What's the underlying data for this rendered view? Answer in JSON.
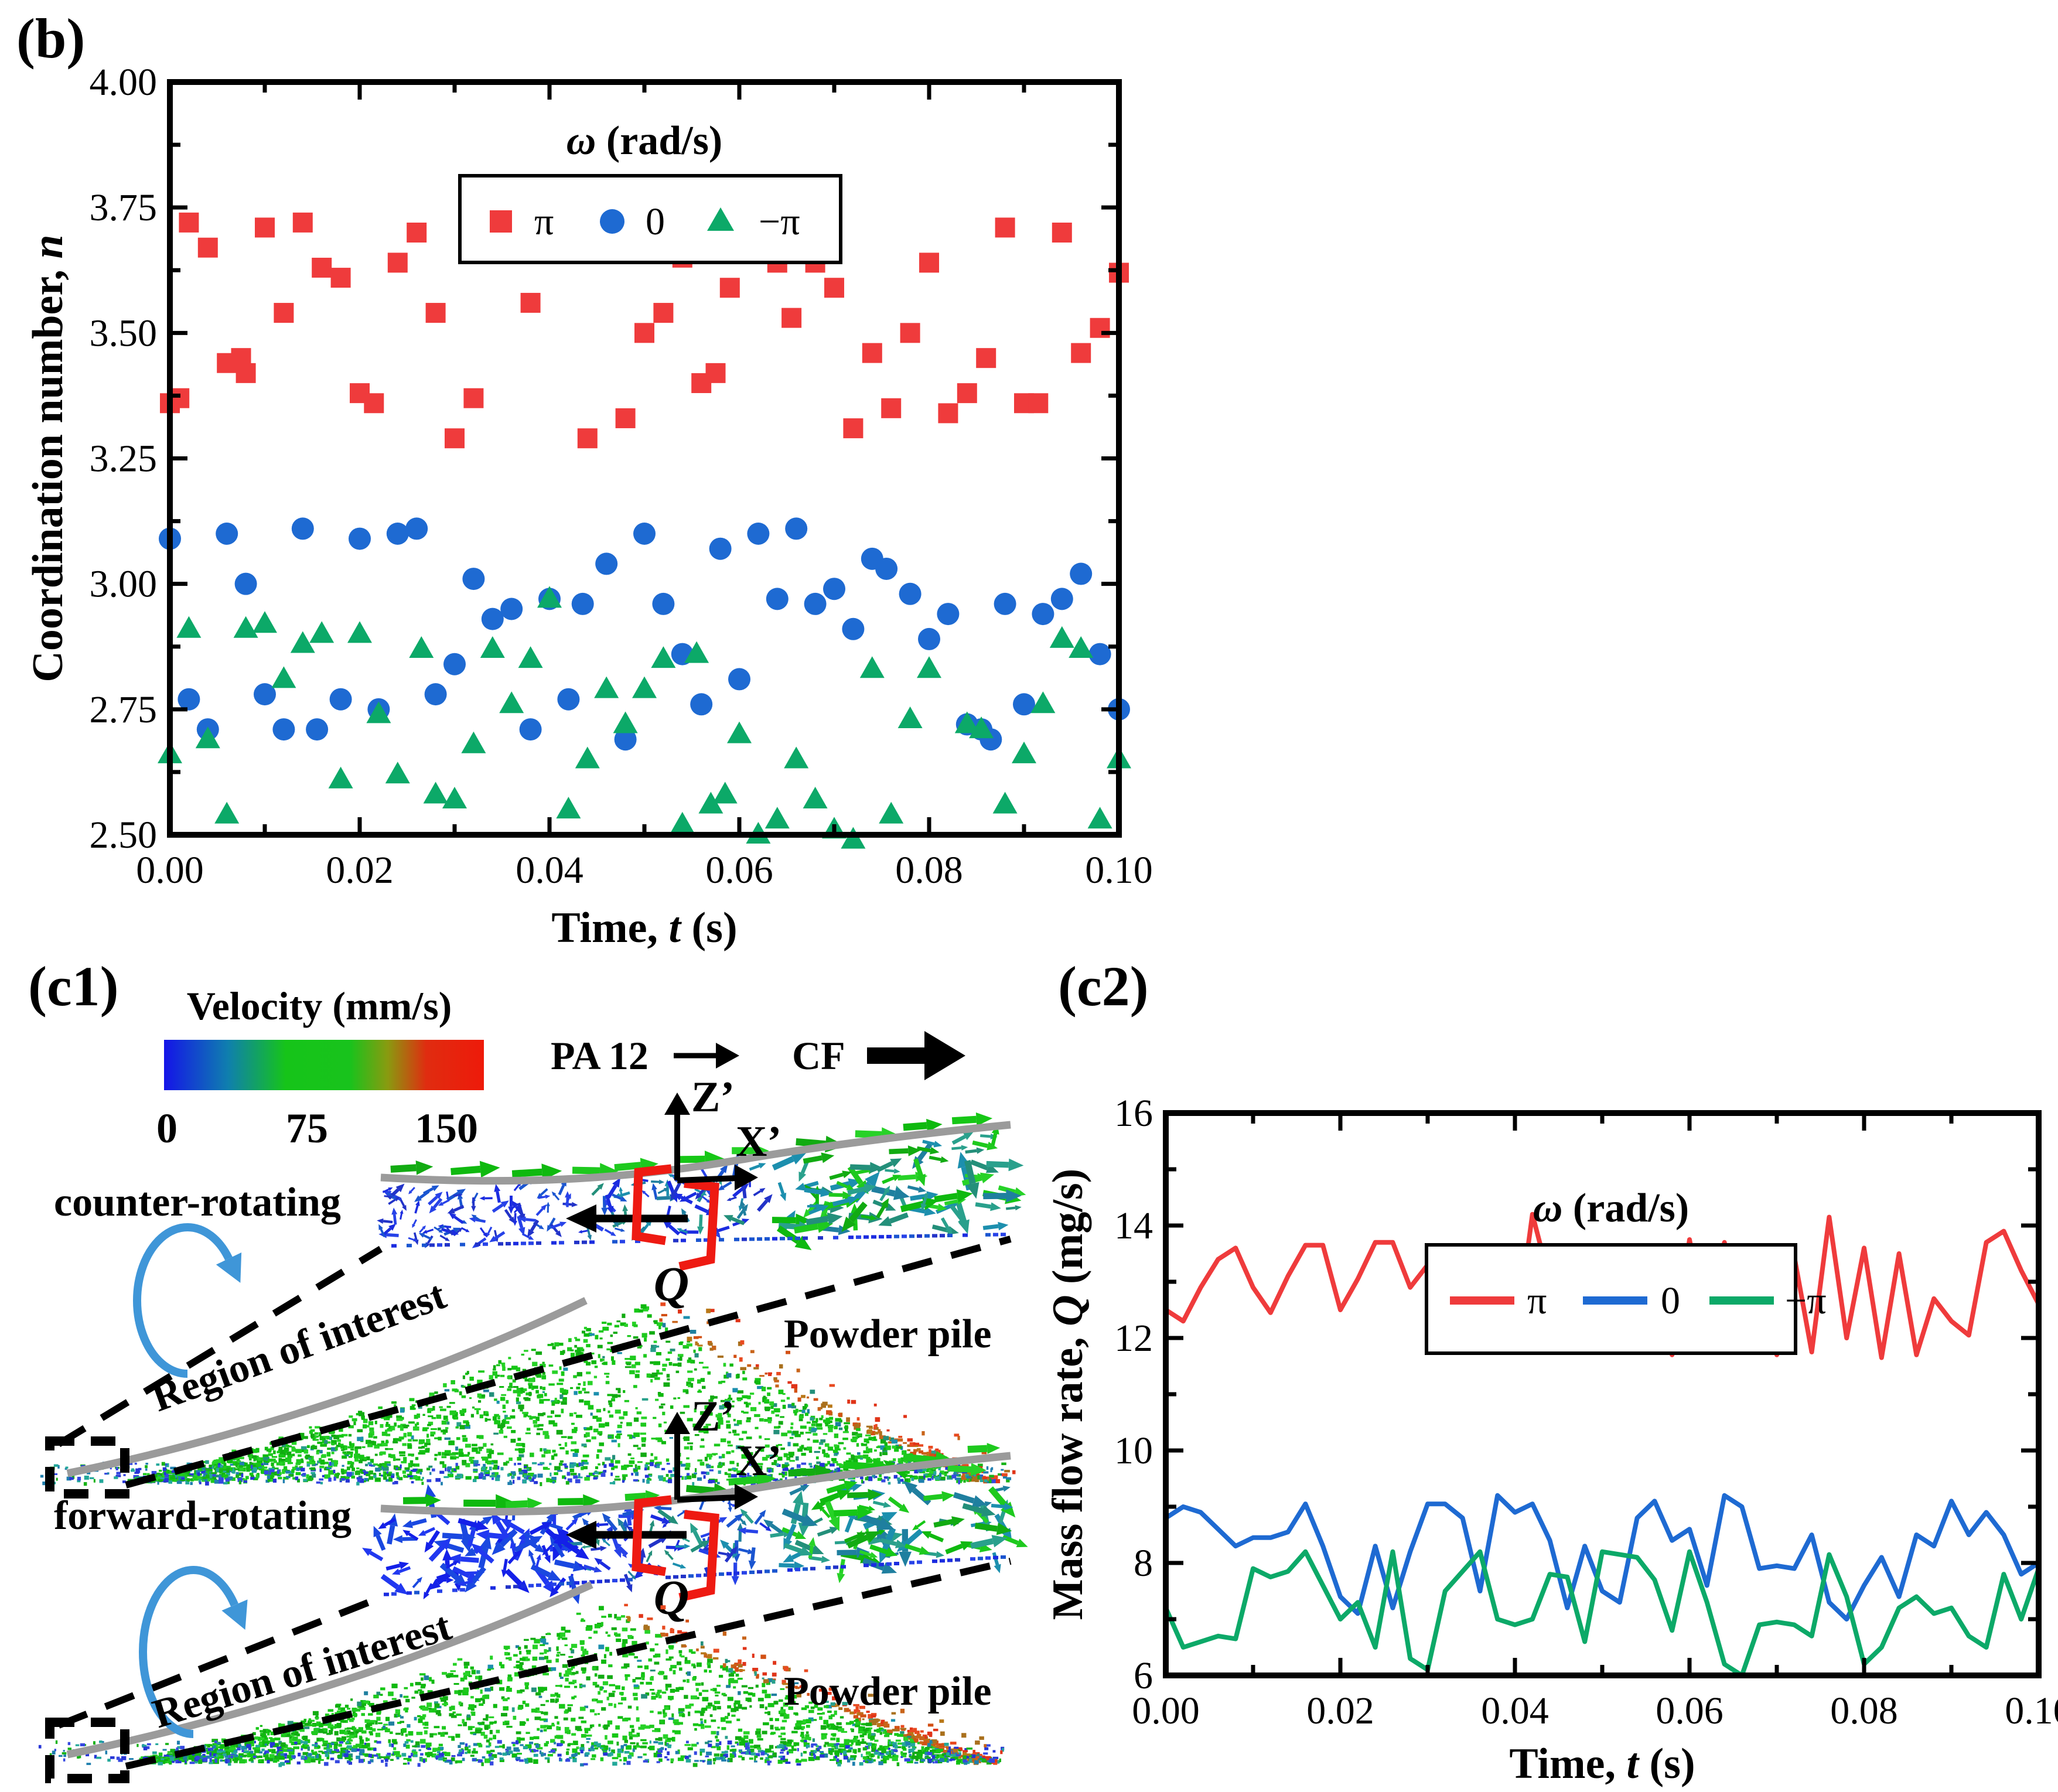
{
  "panels": {
    "b_label": "(b)",
    "c1_label": "(c1)",
    "c2_label": "(c2)"
  },
  "chart_data": [
    {
      "id": "b",
      "type": "scatter",
      "xlabel_parts": [
        [
          "Time, ",
          false
        ],
        [
          "t",
          true
        ],
        [
          " (s)",
          false
        ]
      ],
      "ylabel_parts": [
        [
          "Coordination number, ",
          false
        ],
        [
          "n",
          true
        ]
      ],
      "xlim": [
        0,
        0.1
      ],
      "ylim": [
        2.5,
        4.0
      ],
      "grid": false,
      "legend": {
        "position": "top-center",
        "title_parts": [
          [
            "ω",
            true
          ],
          [
            " (rad/s)",
            false
          ]
        ],
        "entries": [
          {
            "label": "π",
            "marker": "square",
            "color": "#ef3b3c"
          },
          {
            "label": "0",
            "marker": "circle",
            "color": "#1e6ad2"
          },
          {
            "label": "−π",
            "marker": "triangle",
            "color": "#0ca968"
          }
        ]
      },
      "xticks": {
        "values": [
          0,
          0.02,
          0.04,
          0.06,
          0.08,
          0.1
        ],
        "labels": [
          "0.00",
          "0.02",
          "0.04",
          "0.06",
          "0.08",
          "0.10"
        ]
      },
      "yticks": {
        "values": [
          2.5,
          2.75,
          3.0,
          3.25,
          3.5,
          3.75,
          4.0
        ],
        "labels": [
          "2.50",
          "2.75",
          "3.00",
          "3.25",
          "3.50",
          "3.75",
          "4.00"
        ]
      },
      "series": [
        {
          "name": "π",
          "marker": "square",
          "color": "#ef3b3c",
          "points": [
            [
              0.0,
              3.36
            ],
            [
              0.001,
              3.37
            ],
            [
              0.002,
              3.72
            ],
            [
              0.004,
              3.67
            ],
            [
              0.006,
              3.44
            ],
            [
              0.0075,
              3.45
            ],
            [
              0.008,
              3.42
            ],
            [
              0.01,
              3.71
            ],
            [
              0.012,
              3.54
            ],
            [
              0.014,
              3.72
            ],
            [
              0.016,
              3.63
            ],
            [
              0.018,
              3.61
            ],
            [
              0.02,
              3.38
            ],
            [
              0.0215,
              3.36
            ],
            [
              0.024,
              3.64
            ],
            [
              0.026,
              3.7
            ],
            [
              0.028,
              3.54
            ],
            [
              0.03,
              3.29
            ],
            [
              0.032,
              3.37
            ],
            [
              0.034,
              3.72
            ],
            [
              0.036,
              3.67
            ],
            [
              0.038,
              3.56
            ],
            [
              0.04,
              3.7
            ],
            [
              0.041,
              3.7
            ],
            [
              0.042,
              3.71
            ],
            [
              0.044,
              3.29
            ],
            [
              0.046,
              3.68
            ],
            [
              0.048,
              3.33
            ],
            [
              0.05,
              3.5
            ],
            [
              0.052,
              3.54
            ],
            [
              0.054,
              3.65
            ],
            [
              0.056,
              3.4
            ],
            [
              0.0575,
              3.42
            ],
            [
              0.059,
              3.59
            ],
            [
              0.062,
              3.71
            ],
            [
              0.064,
              3.64
            ],
            [
              0.0655,
              3.53
            ],
            [
              0.068,
              3.64
            ],
            [
              0.07,
              3.59
            ],
            [
              0.072,
              3.31
            ],
            [
              0.074,
              3.46
            ],
            [
              0.076,
              3.35
            ],
            [
              0.078,
              3.5
            ],
            [
              0.08,
              3.64
            ],
            [
              0.082,
              3.34
            ],
            [
              0.084,
              3.38
            ],
            [
              0.086,
              3.45
            ],
            [
              0.088,
              3.71
            ],
            [
              0.09,
              3.36
            ],
            [
              0.0915,
              3.36
            ],
            [
              0.094,
              3.7
            ],
            [
              0.096,
              3.46
            ],
            [
              0.098,
              3.51
            ],
            [
              0.1,
              3.62
            ]
          ]
        },
        {
          "name": "0",
          "marker": "circle",
          "color": "#1e6ad2",
          "points": [
            [
              0.0,
              3.09
            ],
            [
              0.002,
              2.77
            ],
            [
              0.004,
              2.71
            ],
            [
              0.006,
              3.1
            ],
            [
              0.008,
              3.0
            ],
            [
              0.01,
              2.78
            ],
            [
              0.012,
              2.71
            ],
            [
              0.014,
              3.11
            ],
            [
              0.0155,
              2.71
            ],
            [
              0.018,
              2.77
            ],
            [
              0.02,
              3.09
            ],
            [
              0.022,
              2.75
            ],
            [
              0.024,
              3.1
            ],
            [
              0.026,
              3.11
            ],
            [
              0.028,
              2.78
            ],
            [
              0.03,
              2.84
            ],
            [
              0.032,
              3.01
            ],
            [
              0.034,
              2.93
            ],
            [
              0.036,
              2.95
            ],
            [
              0.038,
              2.71
            ],
            [
              0.04,
              2.97
            ],
            [
              0.042,
              2.77
            ],
            [
              0.0435,
              2.96
            ],
            [
              0.046,
              3.04
            ],
            [
              0.048,
              2.69
            ],
            [
              0.05,
              3.1
            ],
            [
              0.052,
              2.96
            ],
            [
              0.054,
              2.86
            ],
            [
              0.056,
              2.76
            ],
            [
              0.058,
              3.07
            ],
            [
              0.06,
              2.81
            ],
            [
              0.062,
              3.1
            ],
            [
              0.064,
              2.97
            ],
            [
              0.066,
              3.11
            ],
            [
              0.068,
              2.96
            ],
            [
              0.07,
              2.99
            ],
            [
              0.072,
              2.91
            ],
            [
              0.074,
              3.05
            ],
            [
              0.0755,
              3.03
            ],
            [
              0.078,
              2.98
            ],
            [
              0.08,
              2.89
            ],
            [
              0.082,
              2.94
            ],
            [
              0.084,
              2.72
            ],
            [
              0.0855,
              2.71
            ],
            [
              0.0865,
              2.69
            ],
            [
              0.088,
              2.96
            ],
            [
              0.09,
              2.76
            ],
            [
              0.092,
              2.94
            ],
            [
              0.094,
              2.97
            ],
            [
              0.096,
              3.02
            ],
            [
              0.098,
              2.86
            ],
            [
              0.1,
              2.75
            ]
          ]
        },
        {
          "name": "−π",
          "marker": "triangle",
          "color": "#0ca968",
          "points": [
            [
              0.0,
              2.66
            ],
            [
              0.002,
              2.91
            ],
            [
              0.004,
              2.69
            ],
            [
              0.006,
              2.54
            ],
            [
              0.008,
              2.91
            ],
            [
              0.01,
              2.92
            ],
            [
              0.012,
              2.81
            ],
            [
              0.014,
              2.88
            ],
            [
              0.016,
              2.9
            ],
            [
              0.018,
              2.61
            ],
            [
              0.02,
              2.9
            ],
            [
              0.022,
              2.74
            ],
            [
              0.024,
              2.62
            ],
            [
              0.0265,
              2.87
            ],
            [
              0.028,
              2.58
            ],
            [
              0.03,
              2.57
            ],
            [
              0.032,
              2.68
            ],
            [
              0.034,
              2.87
            ],
            [
              0.036,
              2.76
            ],
            [
              0.038,
              2.85
            ],
            [
              0.04,
              2.97
            ],
            [
              0.042,
              2.55
            ],
            [
              0.044,
              2.65
            ],
            [
              0.046,
              2.79
            ],
            [
              0.048,
              2.72
            ],
            [
              0.05,
              2.79
            ],
            [
              0.052,
              2.85
            ],
            [
              0.054,
              2.52
            ],
            [
              0.0555,
              2.86
            ],
            [
              0.057,
              2.56
            ],
            [
              0.0585,
              2.58
            ],
            [
              0.06,
              2.7
            ],
            [
              0.062,
              2.5
            ],
            [
              0.064,
              2.53
            ],
            [
              0.066,
              2.65
            ],
            [
              0.068,
              2.57
            ],
            [
              0.07,
              2.51
            ],
            [
              0.072,
              2.49
            ],
            [
              0.074,
              2.83
            ],
            [
              0.076,
              2.54
            ],
            [
              0.078,
              2.73
            ],
            [
              0.08,
              2.83
            ],
            [
              0.084,
              2.72
            ],
            [
              0.0855,
              2.71
            ],
            [
              0.088,
              2.56
            ],
            [
              0.09,
              2.66
            ],
            [
              0.092,
              2.76
            ],
            [
              0.094,
              2.89
            ],
            [
              0.096,
              2.87
            ],
            [
              0.098,
              2.53
            ],
            [
              0.1,
              2.65
            ]
          ]
        }
      ]
    },
    {
      "id": "c2",
      "type": "line",
      "xlabel_parts": [
        [
          "Time, ",
          false
        ],
        [
          "t",
          true
        ],
        [
          " (s)",
          false
        ]
      ],
      "ylabel_parts": [
        [
          "Mass flow rate, ",
          false
        ],
        [
          "Q",
          true
        ],
        [
          " (mg/s)",
          false
        ]
      ],
      "xlim": [
        0,
        0.1
      ],
      "ylim": [
        6,
        16
      ],
      "grid": false,
      "legend": {
        "position": "top-center",
        "title_parts": [
          [
            "ω",
            true
          ],
          [
            " (rad/s)",
            false
          ]
        ],
        "entries": [
          {
            "label": "π",
            "marker": "line",
            "color": "#ef3b3c"
          },
          {
            "label": "0",
            "marker": "line",
            "color": "#1e6ad2"
          },
          {
            "label": "−π",
            "marker": "line",
            "color": "#0ca968"
          }
        ]
      },
      "xticks": {
        "values": [
          0,
          0.02,
          0.04,
          0.06,
          0.08,
          0.1
        ],
        "labels": [
          "0.00",
          "0.02",
          "0.04",
          "0.06",
          "0.08",
          "0.10"
        ]
      },
      "yticks": {
        "values": [
          6,
          8,
          10,
          12,
          14,
          16
        ],
        "labels": [
          "6",
          "8",
          "10",
          "12",
          "14",
          "16"
        ]
      },
      "x_start": 0,
      "x_step": 0.002,
      "series": [
        {
          "name": "π",
          "color": "#ef3b3c",
          "values": [
            12.5,
            12.3,
            12.9,
            13.4,
            13.6,
            12.9,
            12.45,
            13.1,
            13.65,
            13.65,
            12.5,
            13.05,
            13.7,
            13.7,
            12.9,
            13.3,
            12.05,
            13.4,
            12.3,
            12.3,
            11.9,
            14.2,
            13.0,
            12.4,
            12.35,
            11.9,
            13.4,
            12.7,
            13.1,
            11.7,
            13.75,
            12.1,
            13.7,
            12.2,
            12.85,
            11.7,
            13.45,
            11.75,
            14.15,
            12.0,
            13.6,
            11.65,
            13.5,
            11.7,
            12.7,
            12.3,
            12.05,
            13.7,
            13.9,
            13.2,
            12.6
          ]
        },
        {
          "name": "0",
          "color": "#1e6ad2",
          "values": [
            8.8,
            9.0,
            8.9,
            8.6,
            8.3,
            8.45,
            8.45,
            8.55,
            9.05,
            8.3,
            7.4,
            7.1,
            8.3,
            7.2,
            8.2,
            9.05,
            9.05,
            8.8,
            7.5,
            9.2,
            8.9,
            9.05,
            8.4,
            7.2,
            8.3,
            7.5,
            7.3,
            8.8,
            9.1,
            8.4,
            8.6,
            7.6,
            9.2,
            9.0,
            7.9,
            7.95,
            7.9,
            8.5,
            7.3,
            7.0,
            7.6,
            8.1,
            7.4,
            8.5,
            8.3,
            9.1,
            8.5,
            8.9,
            8.5,
            7.8,
            8.0
          ]
        },
        {
          "name": "−π",
          "color": "#0ca968",
          "values": [
            7.2,
            6.5,
            6.6,
            6.7,
            6.65,
            7.9,
            7.75,
            7.85,
            8.2,
            7.6,
            7.0,
            7.3,
            6.5,
            8.2,
            6.3,
            6.1,
            7.5,
            7.85,
            8.2,
            7.0,
            6.9,
            7.0,
            7.8,
            7.75,
            6.6,
            8.2,
            8.15,
            8.1,
            7.7,
            6.8,
            8.2,
            7.3,
            6.2,
            6.0,
            6.9,
            6.95,
            6.9,
            6.7,
            8.15,
            7.4,
            6.2,
            6.5,
            7.2,
            7.4,
            7.1,
            7.2,
            6.7,
            6.5,
            7.8,
            7.0,
            7.9
          ]
        }
      ]
    }
  ],
  "c1": {
    "colorbar": {
      "title": "Velocity (mm/s)",
      "tick_labels": [
        "0",
        "75",
        "150"
      ]
    },
    "pa12_label": "PA 12",
    "cf_label": "CF",
    "scenes": [
      {
        "rotation_label": "counter-rotating",
        "z_label": "Z’",
        "x_label": "X’",
        "q_label": "Q",
        "roi_label": "Region of interest",
        "pile_label": "Powder pile"
      },
      {
        "rotation_label": "forward-rotating",
        "z_label": "Z’",
        "x_label": "X’",
        "q_label": "Q",
        "roi_label": "Region of interest",
        "pile_label": "Powder pile"
      }
    ],
    "colors": {
      "arc_blue": "#3f96d8",
      "bracket_red": "#ee1a12",
      "roller_gray": "#9b9b9b"
    }
  }
}
